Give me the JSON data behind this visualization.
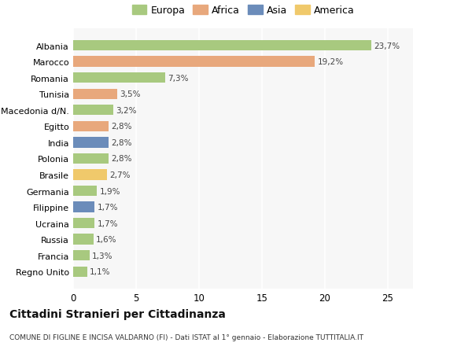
{
  "categories": [
    "Albania",
    "Marocco",
    "Romania",
    "Tunisia",
    "Macedonia d/N.",
    "Egitto",
    "India",
    "Polonia",
    "Brasile",
    "Germania",
    "Filippine",
    "Ucraina",
    "Russia",
    "Francia",
    "Regno Unito"
  ],
  "values": [
    23.7,
    19.2,
    7.3,
    3.5,
    3.2,
    2.8,
    2.8,
    2.8,
    2.7,
    1.9,
    1.7,
    1.7,
    1.6,
    1.3,
    1.1
  ],
  "labels": [
    "23,7%",
    "19,2%",
    "7,3%",
    "3,5%",
    "3,2%",
    "2,8%",
    "2,8%",
    "2,8%",
    "2,7%",
    "1,9%",
    "1,7%",
    "1,7%",
    "1,6%",
    "1,3%",
    "1,1%"
  ],
  "colors": [
    "#a8c97f",
    "#e8a87c",
    "#a8c97f",
    "#e8a87c",
    "#a8c97f",
    "#e8a87c",
    "#6b8cba",
    "#a8c97f",
    "#f0c96b",
    "#a8c97f",
    "#6b8cba",
    "#a8c97f",
    "#a8c97f",
    "#a8c97f",
    "#a8c97f"
  ],
  "legend": [
    "Europa",
    "Africa",
    "Asia",
    "America"
  ],
  "legend_colors": [
    "#a8c97f",
    "#e8a87c",
    "#6b8cba",
    "#f0c96b"
  ],
  "title": "Cittadini Stranieri per Cittadinanza",
  "subtitle": "COMUNE DI FIGLINE E INCISA VALDARNO (FI) - Dati ISTAT al 1° gennaio - Elaborazione TUTTITALIA.IT",
  "xlim": [
    0,
    27
  ],
  "xticks": [
    0,
    5,
    10,
    15,
    20,
    25
  ],
  "background_color": "#ffffff",
  "plot_background": "#f7f7f7"
}
